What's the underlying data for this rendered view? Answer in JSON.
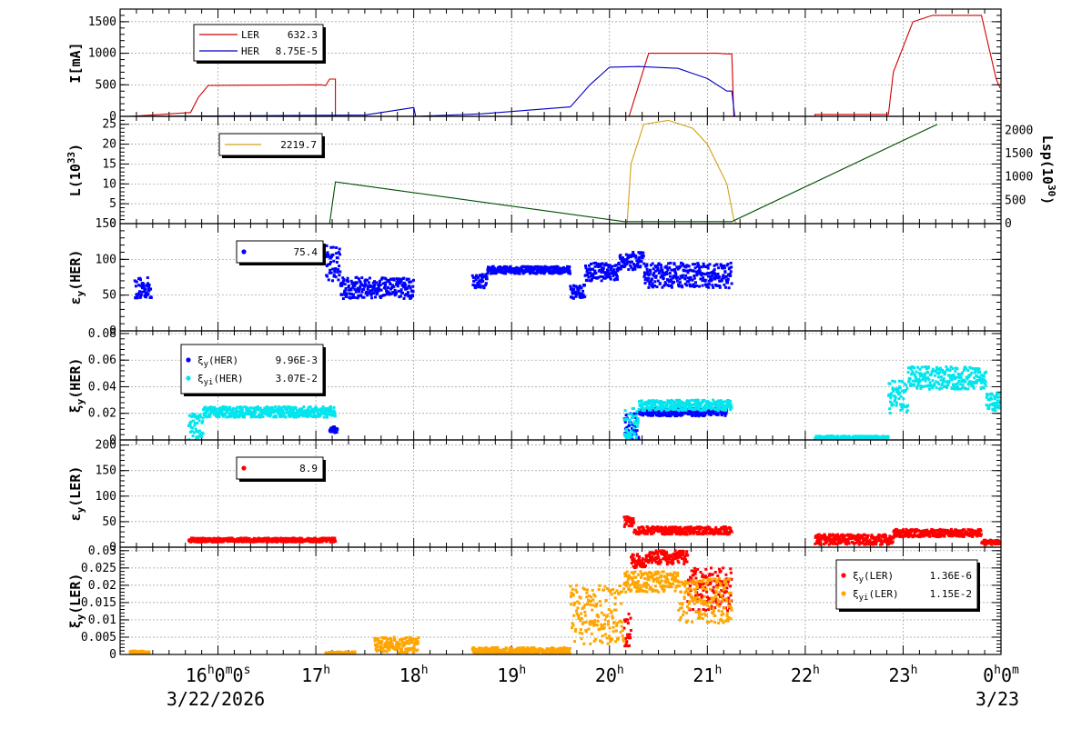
{
  "chart_data": [
    {
      "type": "line",
      "ylabel": "I[mA]",
      "ylim": [
        0,
        1700
      ],
      "yticks": [
        0,
        500,
        1000,
        1500
      ],
      "grid": true,
      "legend_placement": "top-left",
      "series": [
        {
          "name": "LER",
          "legend_value": "632.3",
          "color": "#d00000",
          "x": [
            15.1,
            15.72,
            15.8,
            15.9,
            17.05,
            17.1,
            17.14,
            17.16,
            17.2,
            17.2,
            20.2,
            20.4,
            21.1,
            21.2,
            21.25,
            21.27,
            22.1,
            22.1,
            22.85,
            22.9,
            23.1,
            23.3,
            23.8,
            23.95,
            23.99
          ],
          "y": [
            0,
            60,
            300,
            490,
            500,
            490,
            590,
            590,
            590,
            0,
            0,
            1000,
            1000,
            990,
            990,
            0,
            0,
            30,
            30,
            700,
            1500,
            1600,
            1600,
            600,
            450
          ]
        },
        {
          "name": "HER",
          "legend_value": "8.75E-5",
          "color": "#0000c0",
          "x": [
            15.1,
            17.5,
            18.0,
            18.02,
            18.7,
            19.6,
            19.8,
            20.0,
            20.3,
            20.7,
            21.0,
            21.2,
            21.25,
            21.28,
            23.99
          ],
          "y": [
            0,
            20,
            140,
            0,
            40,
            150,
            500,
            780,
            790,
            760,
            600,
            400,
            400,
            0,
            0
          ]
        }
      ]
    },
    {
      "type": "line",
      "ylabel": "L(10^33)",
      "ylim": [
        0,
        27
      ],
      "yticks": [
        0,
        5,
        10,
        15,
        20,
        25
      ],
      "y2label": "Lsp(10^30)",
      "y2lim": [
        0,
        2300
      ],
      "y2ticks": [
        0,
        500,
        1000,
        1500,
        2000
      ],
      "grid": true,
      "legend_placement": "top-left",
      "series": [
        {
          "name": "",
          "legend_value": "2219.7",
          "color": "#d4a017",
          "x": [
            17.1,
            20.18,
            20.22,
            20.35,
            20.6,
            20.85,
            21.0,
            21.2,
            21.27,
            21.3,
            23.99
          ],
          "y": [
            0,
            0,
            15,
            25,
            26,
            24,
            20,
            10,
            1,
            0,
            0
          ]
        },
        {
          "name": "",
          "color": "#004d00",
          "x": [
            17.14,
            17.2,
            20.15,
            21.25,
            23.35
          ],
          "y": [
            0,
            10.5,
            0.5,
            0.5,
            25
          ]
        }
      ]
    },
    {
      "type": "scatter",
      "ylabel": "εy(HER)",
      "ylim": [
        0,
        150
      ],
      "yticks": [
        0,
        50,
        100,
        150
      ],
      "grid": true,
      "legend_placement": "top-left",
      "series": [
        {
          "name": "",
          "legend_value": "75.4",
          "color": "#0000ff",
          "segments": [
            [
              15.15,
              15.32,
              45,
              75
            ],
            [
              17.1,
              17.25,
              70,
              120
            ],
            [
              17.25,
              18.0,
              45,
              75
            ],
            [
              18.6,
              18.75,
              60,
              80
            ],
            [
              18.75,
              19.6,
              80,
              90
            ],
            [
              19.6,
              19.75,
              45,
              65
            ],
            [
              19.75,
              20.1,
              70,
              95
            ],
            [
              20.1,
              20.35,
              85,
              110
            ],
            [
              20.35,
              21.25,
              60,
              95
            ]
          ]
        }
      ]
    },
    {
      "type": "scatter",
      "ylabel": "ξy(HER)",
      "ylim": [
        0,
        0.082
      ],
      "yticks": [
        0,
        0.02,
        0.04,
        0.06,
        0.08
      ],
      "grid": true,
      "legend_placement": "top-left",
      "series": [
        {
          "name": "ξy(HER)",
          "legend_value": "9.96E-3",
          "color": "#0000ff",
          "segments": [
            [
              17.14,
              17.22,
              0.005,
              0.01
            ],
            [
              20.15,
              20.3,
              0.0,
              0.02
            ],
            [
              20.3,
              21.2,
              0.018,
              0.024
            ]
          ]
        },
        {
          "name": "ξyi(HER)",
          "legend_value": "3.07E-2",
          "color": "#00e5ee",
          "segments": [
            [
              15.7,
              15.85,
              0.0,
              0.02
            ],
            [
              15.85,
              17.2,
              0.017,
              0.025
            ],
            [
              20.15,
              20.3,
              0.0,
              0.024
            ],
            [
              20.3,
              21.25,
              0.022,
              0.03
            ],
            [
              22.1,
              22.85,
              0.0,
              0.003
            ],
            [
              22.85,
              23.05,
              0.02,
              0.045
            ],
            [
              23.05,
              23.85,
              0.038,
              0.055
            ],
            [
              23.85,
              23.99,
              0.022,
              0.035
            ]
          ]
        }
      ]
    },
    {
      "type": "scatter",
      "ylabel": "εy(LER)",
      "ylim": [
        0,
        210
      ],
      "yticks": [
        0,
        50,
        100,
        150,
        200
      ],
      "grid": true,
      "legend_placement": "top-left",
      "series": [
        {
          "name": "",
          "legend_value": "8.9",
          "color": "#ff0000",
          "segments": [
            [
              15.7,
              17.2,
              10,
              18
            ],
            [
              20.15,
              20.25,
              40,
              60
            ],
            [
              20.25,
              21.25,
              25,
              40
            ],
            [
              22.1,
              22.9,
              5,
              25
            ],
            [
              22.9,
              23.8,
              20,
              35
            ],
            [
              23.8,
              23.99,
              5,
              15
            ]
          ]
        }
      ]
    },
    {
      "type": "scatter",
      "ylabel": "ξy(LER)",
      "ylim": [
        0,
        0.031
      ],
      "yticks": [
        0,
        0.005,
        0.01,
        0.015,
        0.02,
        0.025,
        0.03
      ],
      "grid": true,
      "legend_placement": "top-right",
      "series": [
        {
          "name": "ξy(LER)",
          "legend_value": "1.36E-6",
          "color": "#ff0000",
          "segments": [
            [
              20.15,
              20.22,
              0.002,
              0.012
            ],
            [
              20.22,
              20.4,
              0.025,
              0.029
            ],
            [
              20.4,
              20.8,
              0.026,
              0.03
            ],
            [
              20.8,
              21.25,
              0.012,
              0.025
            ]
          ]
        },
        {
          "name": "ξyi(LER)",
          "legend_value": "1.15E-2",
          "color": "#ffa500",
          "segments": [
            [
              15.1,
              15.3,
              0.0,
              0.001
            ],
            [
              17.1,
              17.4,
              0.0,
              0.0008
            ],
            [
              17.6,
              18.05,
              0.0005,
              0.005
            ],
            [
              18.6,
              19.6,
              0.0,
              0.002
            ],
            [
              19.6,
              20.15,
              0.003,
              0.02
            ],
            [
              20.15,
              20.7,
              0.018,
              0.024
            ],
            [
              20.7,
              21.25,
              0.009,
              0.022
            ]
          ]
        }
      ]
    }
  ],
  "x_axis": {
    "range_hours": [
      15.0,
      24.0
    ],
    "tick_labels": [
      {
        "hour": 16,
        "label": "16h0m0s"
      },
      {
        "hour": 17,
        "label": "17h"
      },
      {
        "hour": 18,
        "label": "18h"
      },
      {
        "hour": 19,
        "label": "19h"
      },
      {
        "hour": 20,
        "label": "20h"
      },
      {
        "hour": 21,
        "label": "21h"
      },
      {
        "hour": 22,
        "label": "22h"
      },
      {
        "hour": 23,
        "label": "23h"
      },
      {
        "hour": 24,
        "label": "0h0m"
      }
    ],
    "date_left": "3/22/2026",
    "date_right": "3/23"
  }
}
